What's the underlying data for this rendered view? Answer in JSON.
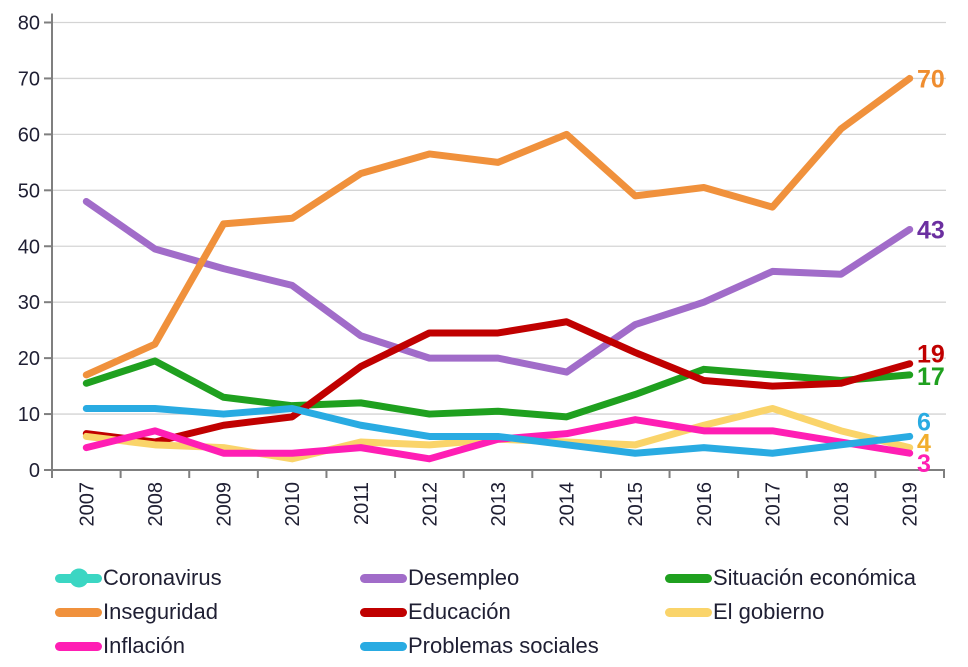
{
  "page": {
    "background": "#ffffff"
  },
  "chart_data": {
    "type": "line",
    "title": "",
    "xlabel": "",
    "ylabel": "",
    "x": [
      "2007",
      "2008",
      "2009",
      "2010",
      "2011",
      "2012",
      "2013",
      "2014",
      "2015",
      "2016",
      "2017",
      "2018",
      "2019"
    ],
    "ylim": [
      0,
      80
    ],
    "yticks": [
      0,
      10,
      20,
      30,
      40,
      50,
      60,
      70,
      80
    ],
    "grid": true,
    "legend_position": "bottom",
    "colors": {
      "grid": "#d4d4d4",
      "axis": "#7f7f7f",
      "tick_label": "#1f1f33",
      "legend_text": "#1f1f33"
    },
    "series": [
      {
        "name": "Coronavirus",
        "slug": "coronavirus",
        "color": "#3bd6c3",
        "label_color": "#3bd6c3",
        "marker": true,
        "values": [],
        "end_label": ""
      },
      {
        "name": "Desempleo",
        "slug": "desempleo",
        "color": "#a16cc9",
        "label_color": "#6b2fa0",
        "marker": false,
        "values": [
          48,
          39.5,
          36,
          33,
          24,
          20,
          20,
          17.5,
          26,
          30,
          35.5,
          35,
          43
        ],
        "end_label": "43"
      },
      {
        "name": "Situación económica",
        "slug": "situacion-economica",
        "color": "#1fa01f",
        "label_color": "#1fa01f",
        "marker": false,
        "values": [
          15.5,
          19.5,
          13,
          11.5,
          12,
          10,
          10.5,
          9.5,
          13.5,
          18,
          17,
          16,
          17
        ],
        "end_label": "17"
      },
      {
        "name": "Inseguridad",
        "slug": "inseguridad",
        "color": "#f0913c",
        "label_color": "#ef8d2f",
        "marker": false,
        "values": [
          17,
          22.5,
          44,
          45,
          53,
          56.5,
          55,
          60,
          49,
          50.5,
          47,
          61,
          70
        ],
        "end_label": "70"
      },
      {
        "name": "Educación",
        "slug": "educacion",
        "color": "#c00000",
        "label_color": "#c00000",
        "marker": false,
        "values": [
          6.5,
          5,
          8,
          9.5,
          18.5,
          24.5,
          24.5,
          26.5,
          21,
          16,
          15,
          15.5,
          19
        ],
        "end_label": "19"
      },
      {
        "name": "El gobierno",
        "slug": "el-gobierno",
        "color": "#fad46a",
        "label_color": "#f2ae2d",
        "marker": false,
        "values": [
          6,
          4.5,
          4,
          2,
          5,
          4.5,
          5.5,
          5,
          4.5,
          8,
          11,
          7,
          4
        ],
        "end_label": "4"
      },
      {
        "name": "Inflación",
        "slug": "inflacion",
        "color": "#ff1eb4",
        "label_color": "#ff1eb4",
        "marker": false,
        "values": [
          4,
          7,
          3,
          3,
          4,
          2,
          5.5,
          6.5,
          9,
          7,
          7,
          5,
          3
        ],
        "end_label": "3"
      },
      {
        "name": "Problemas sociales",
        "slug": "problemas-sociales",
        "color": "#29abe2",
        "label_color": "#29abe2",
        "marker": false,
        "values": [
          11,
          11,
          10,
          11,
          8,
          6,
          6,
          4.5,
          3,
          4,
          3,
          4.5,
          6
        ],
        "end_label": "6"
      }
    ]
  }
}
